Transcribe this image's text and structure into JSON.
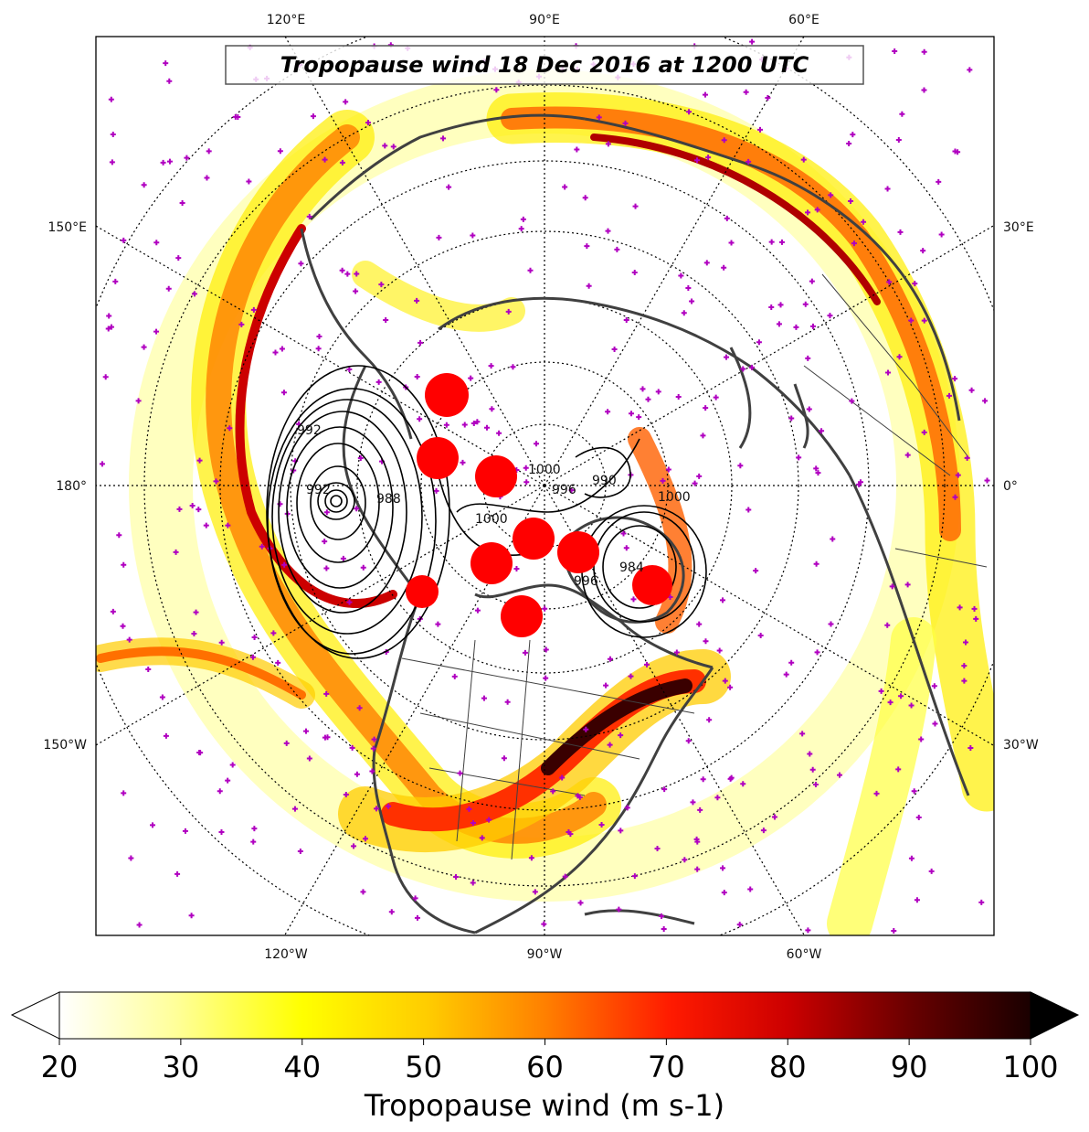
{
  "title": "Tropopause wind 18 Dec 2016 at 1200 UTC",
  "lon_labels": {
    "top": [
      "120°E",
      "90°E",
      "60°E"
    ],
    "bottom": [
      "120°W",
      "90°W",
      "60°W"
    ],
    "left": [
      "150°E",
      "180°",
      "150°W"
    ],
    "right": [
      "30°E",
      "0°",
      "30°W"
    ]
  },
  "contour_labels": [
    "992",
    "1000",
    "1000",
    "996",
    "990",
    "1000",
    "992",
    "996",
    "988",
    "984"
  ],
  "colorbar": {
    "label": "Tropopause wind (m s-1)",
    "ticks": [
      "20",
      "30",
      "40",
      "50",
      "60",
      "70",
      "80",
      "90",
      "100"
    ],
    "min": 20,
    "max": 100,
    "extend": "both",
    "colormap": "hot_r"
  },
  "colors": {
    "coastline": "#404040",
    "station_marker": "#b000c0",
    "cyclone_marker": "#ff0000",
    "contour": "#000000"
  }
}
